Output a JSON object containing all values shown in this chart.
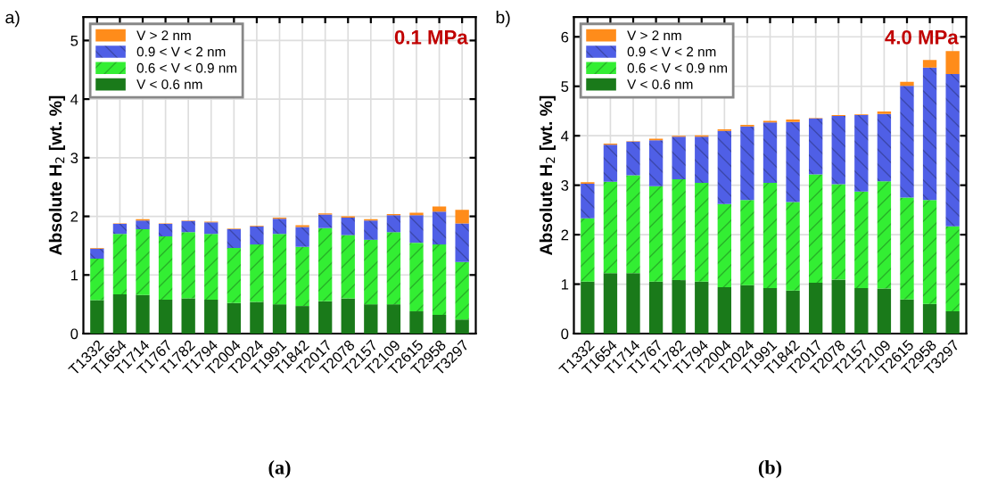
{
  "chart_data": [
    {
      "type": "bar",
      "stacked": true,
      "title": "a)",
      "ylabel": "Absolute H$_{2}$ [wt. %]",
      "annotations": [
        "0.1 MPa",
        "(a)"
      ],
      "legend": "top left",
      "grid": true,
      "ylim": [
        0,
        5.4
      ],
      "yticks": [
        0,
        1,
        2,
        3,
        4,
        5
      ],
      "categories": [
        "T1332",
        "T1654",
        "T1714",
        "T1767",
        "T1782",
        "T1794",
        "T2004",
        "T2024",
        "T1991",
        "T1842",
        "T2017",
        "T2078",
        "T2157",
        "T2109",
        "T2615",
        "T2958",
        "T3297"
      ],
      "series": [
        {
          "name": "V < 0.6 nm",
          "color": "#1a7a1a",
          "values": [
            0.57,
            0.67,
            0.66,
            0.58,
            0.6,
            0.58,
            0.52,
            0.54,
            0.5,
            0.47,
            0.55,
            0.6,
            0.5,
            0.5,
            0.38,
            0.32,
            0.24
          ]
        },
        {
          "name": "0.6 < V < 0.9 nm",
          "color": "#33ee33",
          "values": [
            0.71,
            1.03,
            1.12,
            1.08,
            1.13,
            1.12,
            0.94,
            0.98,
            1.2,
            1.01,
            1.25,
            1.08,
            1.1,
            1.23,
            1.17,
            1.2,
            0.98
          ]
        },
        {
          "name": "0.9 < V < 2 nm",
          "color": "#4f5fe6",
          "values": [
            0.17,
            0.17,
            0.15,
            0.21,
            0.19,
            0.2,
            0.32,
            0.31,
            0.26,
            0.34,
            0.23,
            0.3,
            0.33,
            0.29,
            0.47,
            0.56,
            0.66
          ]
        },
        {
          "name": "V > 2 nm",
          "color": "#ff8c1a",
          "values": [
            0.01,
            0.01,
            0.02,
            0.01,
            0.01,
            0.01,
            0.01,
            0.01,
            0.02,
            0.03,
            0.02,
            0.02,
            0.02,
            0.02,
            0.04,
            0.09,
            0.23
          ]
        }
      ]
    },
    {
      "type": "bar",
      "stacked": true,
      "title": "b)",
      "ylabel": "Absolute H$_{2}$ [wt. %]",
      "annotations": [
        "4.0 MPa",
        "(b)"
      ],
      "legend": "top left",
      "grid": true,
      "ylim": [
        0,
        6.4
      ],
      "yticks": [
        0,
        1,
        2,
        3,
        4,
        5,
        6
      ],
      "categories": [
        "T1332",
        "T1654",
        "T1714",
        "T1767",
        "T1782",
        "T1794",
        "T2004",
        "T2024",
        "T1991",
        "T1842",
        "T2017",
        "T2078",
        "T2157",
        "T2109",
        "T2615",
        "T2958",
        "T3297"
      ],
      "series": [
        {
          "name": "V < 0.6 nm",
          "color": "#1a7a1a",
          "values": [
            1.05,
            1.22,
            1.22,
            1.05,
            1.08,
            1.05,
            0.94,
            0.98,
            0.92,
            0.87,
            1.03,
            1.09,
            0.92,
            0.91,
            0.69,
            0.6,
            0.45
          ]
        },
        {
          "name": "0.6 < V < 0.9 nm",
          "color": "#33ee33",
          "values": [
            1.28,
            1.85,
            1.98,
            1.93,
            2.04,
            2.0,
            1.68,
            1.72,
            2.13,
            1.79,
            2.19,
            1.93,
            1.95,
            2.17,
            2.06,
            2.1,
            1.72
          ]
        },
        {
          "name": "0.9 < V < 2 nm",
          "color": "#4f5fe6",
          "values": [
            0.7,
            0.75,
            0.68,
            0.93,
            0.86,
            0.93,
            1.48,
            1.49,
            1.22,
            1.62,
            1.13,
            1.38,
            1.55,
            1.36,
            2.26,
            2.68,
            3.08
          ]
        },
        {
          "name": "V > 2 nm",
          "color": "#ff8c1a",
          "values": [
            0.03,
            0.02,
            0.01,
            0.03,
            0.02,
            0.03,
            0.03,
            0.03,
            0.03,
            0.05,
            0.01,
            0.02,
            0.01,
            0.05,
            0.08,
            0.15,
            0.46
          ]
        }
      ]
    }
  ]
}
